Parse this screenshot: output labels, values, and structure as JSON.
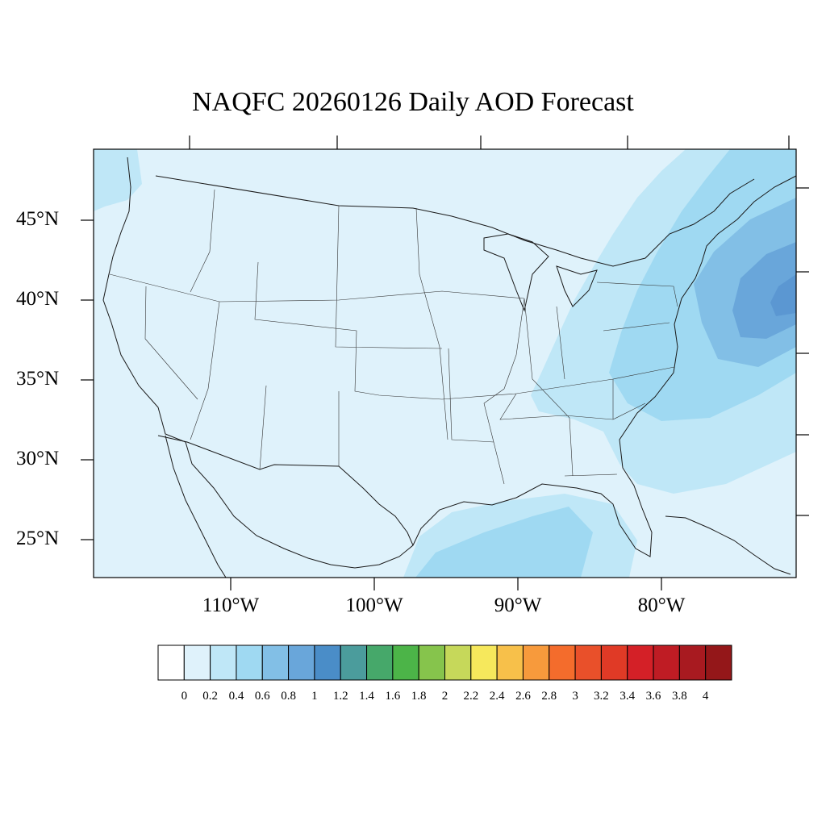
{
  "title": "NAQFC 20260126 Daily AOD Forecast",
  "latitude_labels": [
    "45°N",
    "40°N",
    "35°N",
    "30°N",
    "25°N"
  ],
  "longitude_labels": [
    "110°W",
    "100°W",
    "90°W",
    "80°W"
  ],
  "colorbar": {
    "tick_labels": [
      "0",
      "0.2",
      "0.4",
      "0.6",
      "0.8",
      "1",
      "1.2",
      "1.4",
      "1.6",
      "1.8",
      "2",
      "2.2",
      "2.4",
      "2.6",
      "2.8",
      "3",
      "3.2",
      "3.4",
      "3.6",
      "3.8",
      "4"
    ],
    "colors": [
      "#ffffff",
      "#dff2fb",
      "#bfe7f7",
      "#9fd9f2",
      "#82bfe6",
      "#69a6da",
      "#4a8dc8",
      "#4b9c9c",
      "#46a86a",
      "#4cb448",
      "#86c44c",
      "#c6d85a",
      "#f6e85c",
      "#f7c04a",
      "#f79a3c",
      "#f46c2c",
      "#e9502a",
      "#e03a26",
      "#d42027",
      "#bf1c24",
      "#a81a20",
      "#941719"
    ]
  },
  "map": {
    "background_color": "#dff2fb",
    "region": "Contiguous United States, southern Canada, northern Mexico, Gulf of Mexico, western Atlantic"
  }
}
